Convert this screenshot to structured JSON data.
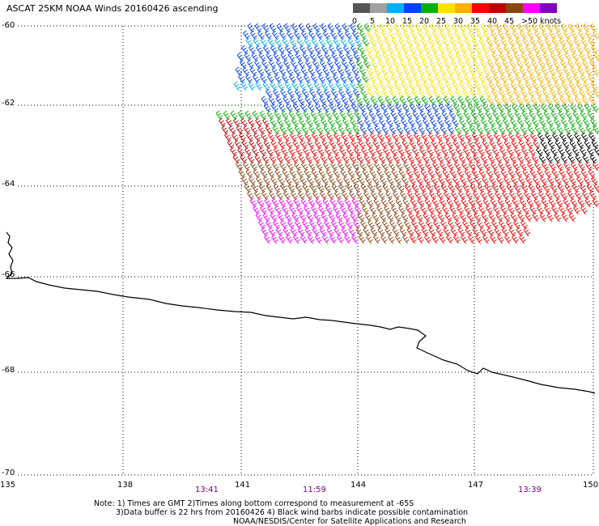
{
  "title": "ASCAT 25KM NOAA Winds 20160426 ascending",
  "scale": {
    "colors": [
      "#555555",
      "#a0a0a0",
      "#00b0ff",
      "#0040ff",
      "#00b000",
      "#ffe000",
      "#ffb000",
      "#ff0000",
      "#c00000",
      "#8b4513",
      "#ff00ff",
      "#8000c0"
    ],
    "labels": [
      "0",
      "5",
      "10",
      "15",
      "20",
      "25",
      "30",
      "35",
      "40",
      "45",
      ">50 knots"
    ]
  },
  "lat_labels": [
    "-60",
    "-62",
    "-64",
    "-66",
    "-68",
    "-70"
  ],
  "lon_labels": [
    "135",
    "138",
    "141",
    "144",
    "147",
    "150"
  ],
  "time_labels": [
    "13:41",
    "11:59",
    "13:39"
  ],
  "notes": [
    "Note: 1) Times are GMT 2)Times along bottom correspond to measurement at -65S",
    "3)Data buffer is 22 hrs from 20160426 4) Black wind barbs indicate possible contamination",
    "NOAA/NESDIS/Center for Satellite Applications and Research"
  ]
}
